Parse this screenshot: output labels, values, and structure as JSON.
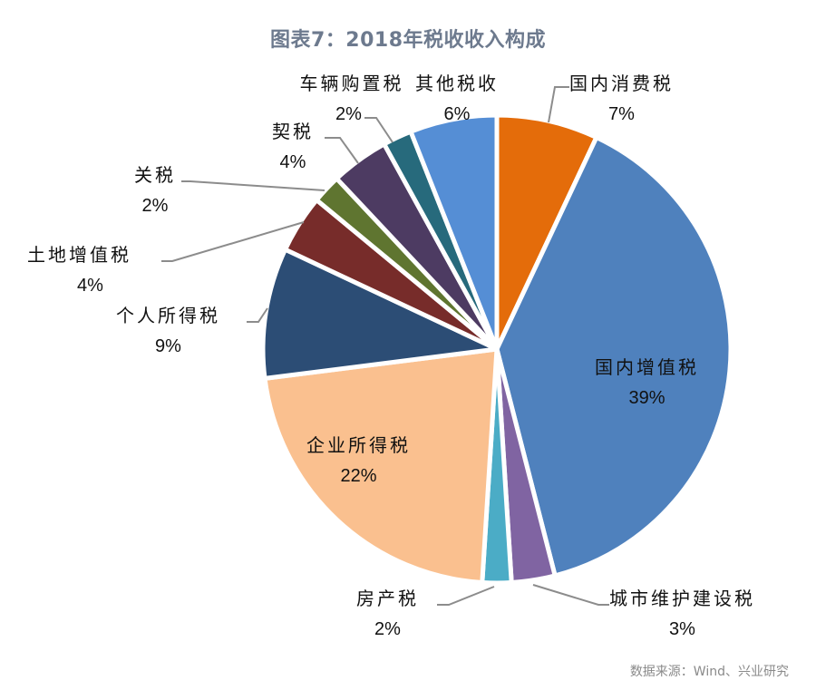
{
  "title": "图表7：2018年税收收入构成",
  "source": "数据来源：Wind、兴业研究",
  "chart_data": {
    "type": "pie",
    "title": "图表7：2018年税收收入构成",
    "start_angle_deg": 0,
    "direction": "clockwise",
    "slices": [
      {
        "label": "国内消费税",
        "value": 7,
        "pct_label": "7%",
        "color": "#e46c0a"
      },
      {
        "label": "国内增值税",
        "value": 39,
        "pct_label": "39%",
        "color": "#4f81bd"
      },
      {
        "label": "城市维护建设税",
        "value": 3,
        "pct_label": "3%",
        "color": "#8064a2"
      },
      {
        "label": "房产税",
        "value": 2,
        "pct_label": "2%",
        "color": "#4bacc6"
      },
      {
        "label": "企业所得税",
        "value": 22,
        "pct_label": "22%",
        "color": "#fac08f"
      },
      {
        "label": "个人所得税",
        "value": 9,
        "pct_label": "9%",
        "color": "#2c4d75"
      },
      {
        "label": "土地增值税",
        "value": 4,
        "pct_label": "4%",
        "color": "#772c2a"
      },
      {
        "label": "关税",
        "value": 2,
        "pct_label": "2%",
        "color": "#5f7530"
      },
      {
        "label": "契税",
        "value": 4,
        "pct_label": "4%",
        "color": "#4d3b62"
      },
      {
        "label": "车辆购置税",
        "value": 2,
        "pct_label": "2%",
        "color": "#276a7c"
      },
      {
        "label": "其他税收",
        "value": 6,
        "pct_label": "6%",
        "color": "#558ed5"
      }
    ],
    "legend": "none",
    "source": "数据来源：Wind、兴业研究"
  },
  "labels": {
    "consumption": {
      "name": "国内消费税",
      "pct": "7%"
    },
    "vat": {
      "name": "国内增值税",
      "pct": "39%"
    },
    "urban": {
      "name": "城市维护建设税",
      "pct": "3%"
    },
    "property": {
      "name": "房产税",
      "pct": "2%"
    },
    "corporate": {
      "name": "企业所得税",
      "pct": "22%"
    },
    "personal": {
      "name": "个人所得税",
      "pct": "9%"
    },
    "land": {
      "name": "土地增值税",
      "pct": "4%"
    },
    "tariff": {
      "name": "关税",
      "pct": "2%"
    },
    "deed": {
      "name": "契税",
      "pct": "4%"
    },
    "vehicle": {
      "name": "车辆购置税",
      "pct": "2%"
    },
    "other": {
      "name": "其他税收",
      "pct": "6%"
    }
  }
}
